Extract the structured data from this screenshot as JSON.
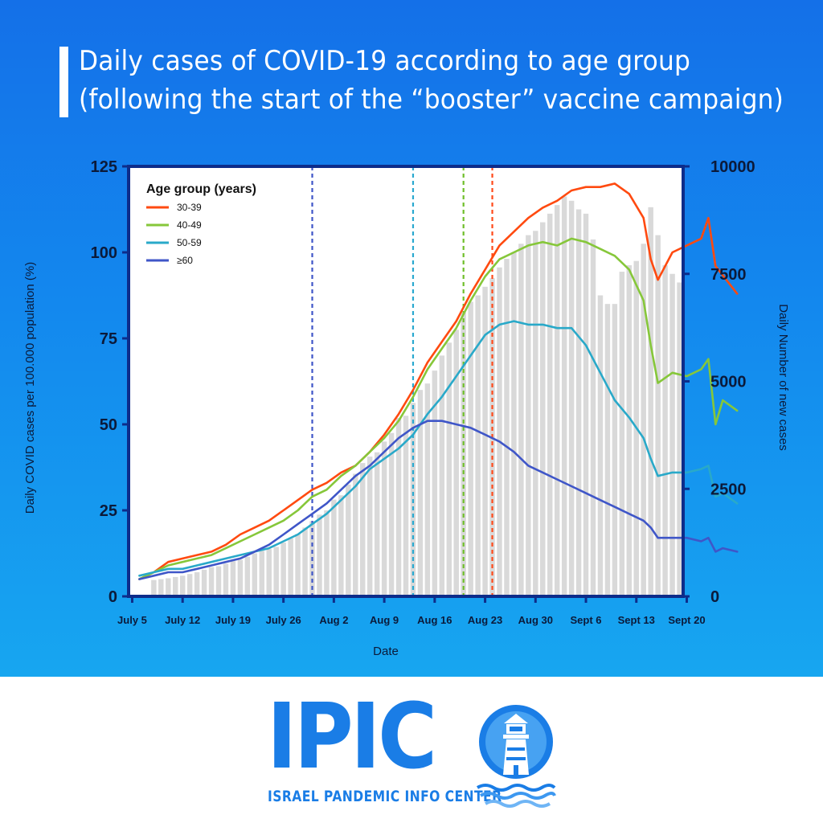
{
  "page": {
    "title_line1": "Daily cases of COVID-19 according to age group",
    "title_line2": "(following the start of the “booster” vaccine campaign)"
  },
  "brand": {
    "name": "IPIC",
    "subtitle": "ISRAEL PANDEMIC INFO CENTER",
    "icon": "lighthouse-icon",
    "color": "#1a7de6"
  },
  "chart_data": {
    "type": "line",
    "xlabel": "Date",
    "ylabel_left": "Daily COVID cases per 100.000 population (%)",
    "ylabel_right": "Daily Number of new cases",
    "ylim_left": [
      0,
      125
    ],
    "ylim_right": [
      0,
      10000
    ],
    "yticks_left": [
      0,
      25,
      50,
      75,
      100,
      125
    ],
    "yticks_right": [
      0,
      2500,
      5000,
      7500,
      10000
    ],
    "x_tick_labels": [
      "July 5",
      "July 12",
      "July 19",
      "July 26",
      "Aug 2",
      "Aug 9",
      "Aug 16",
      "Aug 23",
      "Aug 30",
      "Sept 6",
      "Sept 13",
      "Sept 20"
    ],
    "x_day_range": [
      "July 5",
      "Sept 20"
    ],
    "legend_title": "Age group (years)",
    "legend_position": "top-left",
    "grid": false,
    "bars": {
      "axis": "right",
      "color": "#d9d9d9",
      "values": [
        380,
        400,
        420,
        450,
        480,
        520,
        560,
        620,
        680,
        700,
        760,
        820,
        850,
        920,
        1000,
        1060,
        1100,
        1150,
        1250,
        1350,
        1450,
        1600,
        1750,
        1900,
        2000,
        2250,
        2350,
        2600,
        2850,
        3100,
        3250,
        3350,
        3600,
        3800,
        4150,
        4200,
        4500,
        4800,
        4950,
        5250,
        5600,
        5900,
        6200,
        6600,
        6850,
        7000,
        7200,
        7400,
        7650,
        7850,
        8000,
        8200,
        8400,
        8500,
        8700,
        8900,
        9100,
        9300,
        9200,
        9000,
        8900,
        8300,
        7000,
        6800,
        6800,
        7550,
        7700,
        7800,
        8200,
        9050,
        8400,
        7700,
        7500,
        7300
      ]
    },
    "vlines": [
      {
        "date": "July 30",
        "color": "#3f56c8"
      },
      {
        "date": "Aug 13",
        "color": "#2aa9d0"
      },
      {
        "date": "Aug 20",
        "color": "#6fbf2a"
      },
      {
        "date": "Aug 24",
        "color": "#ff4a1a"
      }
    ],
    "series": [
      {
        "name": "30-39",
        "color": "#ff4a10",
        "x": [
          1,
          2,
          3,
          5,
          7,
          9,
          11,
          13,
          15,
          17,
          19,
          21,
          23,
          25,
          27,
          29,
          31,
          33,
          35,
          37,
          39,
          41,
          43,
          45,
          47,
          49,
          51,
          53,
          55,
          57,
          59,
          61,
          63,
          65,
          67,
          69,
          71,
          72,
          73,
          75,
          77,
          79,
          80,
          81,
          84
        ],
        "values": [
          5,
          6,
          7,
          10,
          11,
          12,
          13,
          15,
          18,
          20,
          22,
          25,
          28,
          31,
          33,
          36,
          38,
          42,
          47,
          53,
          60,
          68,
          74,
          80,
          88,
          95,
          102,
          106,
          110,
          113,
          115,
          118,
          119,
          119,
          120,
          117,
          110,
          98,
          92,
          100,
          102,
          104,
          110,
          96,
          88
        ]
      },
      {
        "name": "40-49",
        "color": "#86c73a",
        "x": [
          1,
          2,
          3,
          5,
          7,
          9,
          11,
          13,
          15,
          17,
          19,
          21,
          23,
          25,
          27,
          29,
          31,
          33,
          35,
          37,
          39,
          41,
          43,
          45,
          47,
          49,
          51,
          53,
          55,
          57,
          59,
          61,
          63,
          65,
          67,
          69,
          71,
          72,
          73,
          75,
          77,
          79,
          80,
          81,
          82,
          84
        ],
        "values": [
          5,
          6,
          7,
          9,
          10,
          11,
          12,
          14,
          16,
          18,
          20,
          22,
          25,
          29,
          31,
          35,
          38,
          42,
          46,
          51,
          58,
          66,
          72,
          78,
          86,
          93,
          98,
          100,
          102,
          103,
          102,
          104,
          103,
          101,
          99,
          95,
          86,
          73,
          62,
          65,
          64,
          66,
          69,
          50,
          57,
          54
        ]
      },
      {
        "name": "50-59",
        "color": "#29a9c9",
        "x": [
          1,
          3,
          5,
          7,
          9,
          11,
          13,
          15,
          17,
          19,
          21,
          23,
          25,
          27,
          29,
          31,
          33,
          35,
          37,
          39,
          41,
          43,
          45,
          47,
          49,
          51,
          53,
          55,
          57,
          59,
          61,
          63,
          65,
          67,
          69,
          71,
          72,
          73,
          75,
          77,
          79,
          80,
          81,
          82,
          84
        ],
        "values": [
          6,
          7,
          8,
          8,
          9,
          10,
          11,
          12,
          13,
          14,
          16,
          18,
          21,
          24,
          28,
          32,
          37,
          40,
          43,
          47,
          53,
          58,
          64,
          70,
          76,
          79,
          80,
          79,
          79,
          78,
          78,
          73,
          65,
          57,
          52,
          46,
          40,
          35,
          36,
          36,
          37,
          38,
          29,
          30,
          27
        ]
      },
      {
        "name": "≥60",
        "color": "#3f56c8",
        "x": [
          1,
          3,
          5,
          7,
          9,
          11,
          13,
          15,
          17,
          19,
          21,
          23,
          25,
          27,
          29,
          31,
          33,
          35,
          37,
          39,
          41,
          43,
          45,
          47,
          49,
          51,
          53,
          55,
          57,
          59,
          61,
          63,
          65,
          67,
          69,
          71,
          72,
          73,
          75,
          77,
          79,
          80,
          81,
          82,
          84
        ],
        "values": [
          5,
          6,
          7,
          7,
          8,
          9,
          10,
          11,
          13,
          15,
          18,
          21,
          24,
          27,
          31,
          35,
          38,
          42,
          46,
          49,
          51,
          51,
          50,
          49,
          47,
          45,
          42,
          38,
          36,
          34,
          32,
          30,
          28,
          26,
          24,
          22,
          20,
          17,
          17,
          17,
          16,
          17,
          13,
          14,
          13
        ]
      }
    ]
  }
}
